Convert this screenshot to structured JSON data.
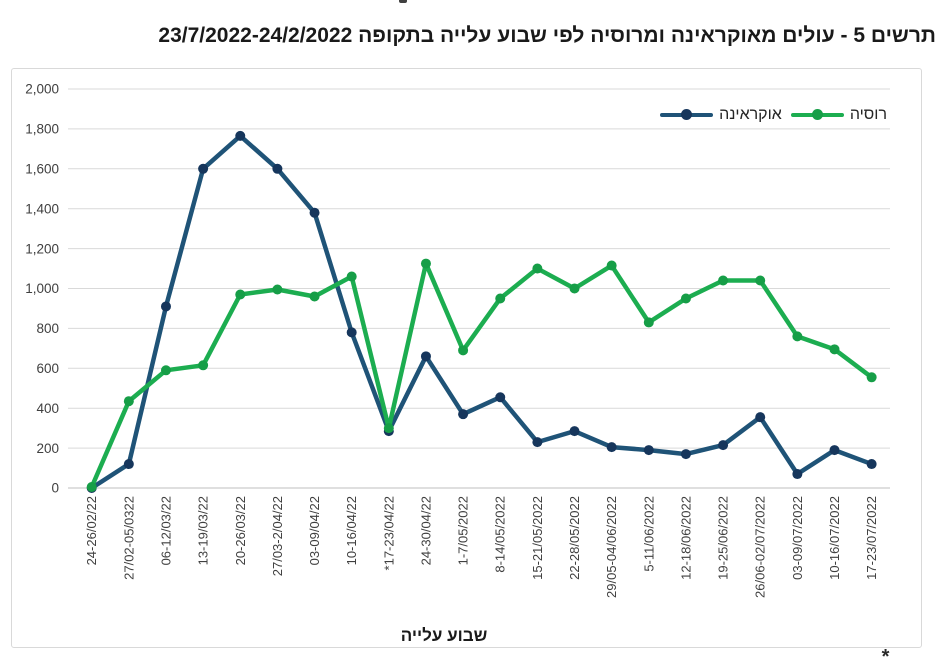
{
  "page": {
    "title": "תרשים 5 - עולים מאוקראינה ומרוסיה לפי שבוע עלייה בתקופה 23/7/2022-24/2/2022"
  },
  "footnote": {
    "mark": "*"
  },
  "colors": {
    "gridline": "#d9d9d9",
    "axis_line": "#bfbfbf",
    "tick_text": "#3f3f3f",
    "axis_title_text": "#1a1a1a",
    "panel_border": "#d9d9d9",
    "background": "#ffffff"
  },
  "chart_data": {
    "type": "line",
    "title": "תרשים 5 - עולים מאוקראינה ומרוסיה לפי שבוע עלייה בתקופה 23/7/2022-24/2/2022",
    "xlabel": "שבוע עלייה",
    "ylabel": "",
    "ylim": [
      0,
      2000
    ],
    "ytick_step": 200,
    "grid": true,
    "legend_position": "top-right-inside",
    "categories": [
      "24-26/02/22",
      "27/02-05/0322",
      "06-12/03/22",
      "13-19/03/22",
      "20-26/03/22",
      "27/03-2/04/22",
      "03-09/04/22",
      "10-16/04/22",
      "*17-23/04/22",
      "24-30/04/22",
      "1-7/05/2022",
      "8-14/05/2022",
      "15-21/05/2022",
      "22-28/05/2022",
      "29/05-04/06/2022",
      "5-11/06/2022",
      "12-18/06/2022",
      "19-25/06/2022",
      "26/06-02/07/2022",
      "03-09/07/2022",
      "10-16/07/2022",
      "17-23/07/2022"
    ],
    "series": [
      {
        "id": "ukraine",
        "name": "אוקראינה",
        "color": "#1f5377",
        "marker_color": "#16365c",
        "values": [
          0,
          120,
          910,
          1600,
          1765,
          1600,
          1380,
          780,
          285,
          660,
          370,
          455,
          230,
          285,
          205,
          190,
          170,
          215,
          355,
          70,
          190,
          120
        ]
      },
      {
        "id": "russia",
        "name": "רוסיה",
        "color": "#1cad50",
        "marker_color": "#169e47",
        "values": [
          5,
          435,
          590,
          615,
          970,
          995,
          960,
          1060,
          300,
          1125,
          690,
          950,
          1100,
          1000,
          1115,
          830,
          950,
          1040,
          1040,
          760,
          695,
          555
        ]
      }
    ]
  }
}
